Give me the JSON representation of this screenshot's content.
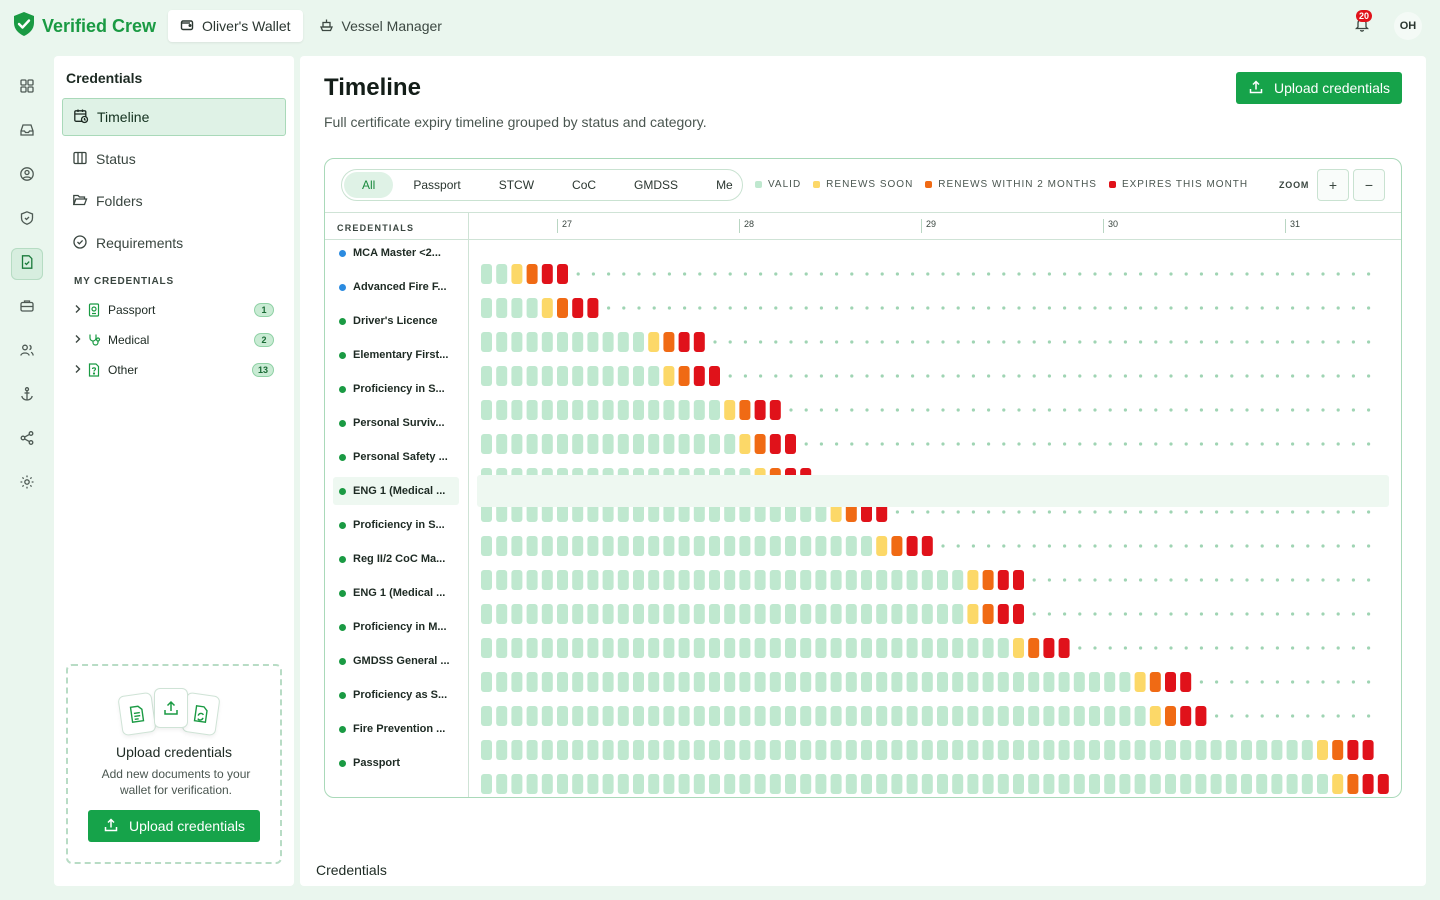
{
  "brand": {
    "name": "Verified Crew"
  },
  "top_tabs": [
    {
      "label": "Oliver's Wallet",
      "icon": "wallet-icon"
    },
    {
      "label": "Vessel Manager",
      "icon": "ship-icon"
    }
  ],
  "notifications": {
    "count": "20"
  },
  "user": {
    "initials": "OH"
  },
  "rail": [
    "dashboard-icon",
    "inbox-icon",
    "user-circle-icon",
    "shield-icon",
    "document-check-icon",
    "briefcase-icon",
    "users-icon",
    "anchor-icon",
    "share-icon",
    "gear-icon"
  ],
  "sidebar": {
    "title": "Credentials",
    "nav": [
      {
        "label": "Timeline",
        "icon": "calendar-clock-icon"
      },
      {
        "label": "Status",
        "icon": "columns-icon"
      },
      {
        "label": "Folders",
        "icon": "folder-open-icon"
      },
      {
        "label": "Requirements",
        "icon": "check-circle-icon"
      }
    ],
    "section_label": "MY CREDENTIALS",
    "folders": [
      {
        "label": "Passport",
        "count": "1",
        "icon": "passport-icon"
      },
      {
        "label": "Medical",
        "count": "2",
        "icon": "stethoscope-icon"
      },
      {
        "label": "Other",
        "count": "13",
        "icon": "document-icon"
      }
    ],
    "upload_card": {
      "title": "Upload credentials",
      "subtitle": "Add new documents to your wallet for verification.",
      "button": "Upload credentials"
    }
  },
  "main": {
    "title": "Timeline",
    "subtitle": "Full certificate expiry timeline grouped by status and category.",
    "upload_button": "Upload credentials",
    "filter_tabs": [
      "All",
      "Passport",
      "STCW",
      "CoC",
      "GMDSS",
      "Me"
    ],
    "legend": [
      {
        "label": "VALID",
        "color": "#bfe8cf"
      },
      {
        "label": "RENEWS SOON",
        "color": "#fcd868"
      },
      {
        "label": "RENEWS WITHIN 2 MONTHS",
        "color": "#f06a14"
      },
      {
        "label": "EXPIRES THIS MONTH",
        "color": "#e0121a"
      }
    ],
    "zoom_label": "ZOOM",
    "zoom_in": "+",
    "zoom_out": "−",
    "column_header": "CREDENTIALS",
    "section_heading": "Credentials"
  },
  "chart_data": {
    "type": "timeline",
    "days": [
      "27",
      "28",
      "29",
      "30",
      "31"
    ],
    "status_colors": {
      "valid": "#bfe8cf",
      "renews_soon": "#fcd868",
      "renews_2m": "#f06a14",
      "expires_month": "#e0121a",
      "remaining": "#9fd4b3"
    },
    "rows": [
      {
        "label": "MCA Master <2...",
        "dot": "#2b8be0",
        "valid": 2,
        "renews_soon": 1,
        "renews_2m": 1,
        "expires_month": 2
      },
      {
        "label": "Advanced Fire F...",
        "dot": "#2b8be0",
        "valid": 4,
        "renews_soon": 1,
        "renews_2m": 1,
        "expires_month": 2
      },
      {
        "label": "Driver's Licence",
        "dot": "#1a9a43",
        "valid": 11,
        "renews_soon": 1,
        "renews_2m": 1,
        "expires_month": 2
      },
      {
        "label": "Elementary First...",
        "dot": "#1a9a43",
        "valid": 12,
        "renews_soon": 1,
        "renews_2m": 1,
        "expires_month": 2
      },
      {
        "label": "Proficiency in S...",
        "dot": "#1a9a43",
        "valid": 16,
        "renews_soon": 1,
        "renews_2m": 1,
        "expires_month": 2
      },
      {
        "label": "Personal Surviv...",
        "dot": "#1a9a43",
        "valid": 17,
        "renews_soon": 1,
        "renews_2m": 1,
        "expires_month": 2
      },
      {
        "label": "Personal Safety ...",
        "dot": "#1a9a43",
        "valid": 18,
        "renews_soon": 1,
        "renews_2m": 1,
        "expires_month": 2
      },
      {
        "label": "ENG 1 (Medical ...",
        "dot": "#1a9a43",
        "valid": 23,
        "renews_soon": 1,
        "renews_2m": 1,
        "expires_month": 2,
        "highlight": true
      },
      {
        "label": "Proficiency in S...",
        "dot": "#1a9a43",
        "valid": 26,
        "renews_soon": 1,
        "renews_2m": 1,
        "expires_month": 2
      },
      {
        "label": "Reg II/2 CoC Ma...",
        "dot": "#1a9a43",
        "valid": 32,
        "renews_soon": 1,
        "renews_2m": 1,
        "expires_month": 2
      },
      {
        "label": "ENG 1 (Medical ...",
        "dot": "#1a9a43",
        "valid": 32,
        "renews_soon": 1,
        "renews_2m": 1,
        "expires_month": 2
      },
      {
        "label": "Proficiency in M...",
        "dot": "#1a9a43",
        "valid": 35,
        "renews_soon": 1,
        "renews_2m": 1,
        "expires_month": 2
      },
      {
        "label": "GMDSS General ...",
        "dot": "#1a9a43",
        "valid": 43,
        "renews_soon": 1,
        "renews_2m": 1,
        "expires_month": 2
      },
      {
        "label": "Proficiency as S...",
        "dot": "#1a9a43",
        "valid": 44,
        "renews_soon": 1,
        "renews_2m": 1,
        "expires_month": 2
      },
      {
        "label": "Fire Prevention ...",
        "dot": "#1a9a43",
        "valid": 55,
        "renews_soon": 1,
        "renews_2m": 1,
        "expires_month": 2
      },
      {
        "label": "Passport",
        "dot": "#1a9a43",
        "valid": 56,
        "renews_soon": 1,
        "renews_2m": 1,
        "expires_month": 2
      }
    ]
  }
}
